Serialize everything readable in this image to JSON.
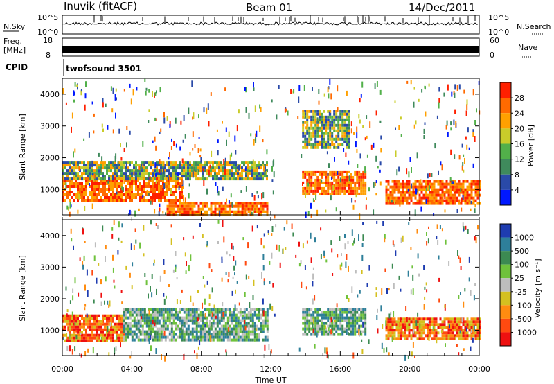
{
  "header": {
    "station": "Inuvik (fitACF)",
    "beam": "Beam 01",
    "date": "14/Dec/2011"
  },
  "strip_nsky": {
    "left_label": "N.Sky",
    "right_label": "N.Search",
    "left_ticks": [
      "10^5",
      "10^0"
    ],
    "right_ticks": [
      "10^5",
      "10^0"
    ]
  },
  "strip_freq": {
    "left_label_1": "Freq.",
    "left_label_2": "[MHz]",
    "right_label": "Nave",
    "left_ticks": [
      "18",
      "8"
    ],
    "right_ticks": [
      "60",
      "0"
    ]
  },
  "cpid": {
    "label": "CPID",
    "value": "twofsound 3501"
  },
  "chart_data": [
    {
      "type": "heatmap",
      "name": "power",
      "ylabel": "Slant Range [km]",
      "ylim": [
        200,
        4500
      ],
      "xlim_hours": [
        0,
        24
      ],
      "y_ticks": [
        1000,
        2000,
        3000,
        4000
      ],
      "colorbar": {
        "label": "Power [dB]",
        "range": [
          0,
          32
        ],
        "ticks": [
          "28",
          "24",
          "20",
          "16",
          "12",
          "8",
          "4"
        ]
      },
      "bands": [
        {
          "t0": 0.0,
          "t1": 6.9,
          "r0": 700,
          "r1": 1400,
          "level": "high"
        },
        {
          "t0": 0.0,
          "t1": 11.8,
          "r0": 1300,
          "r1": 1900,
          "level": "mid"
        },
        {
          "t0": 6.0,
          "t1": 11.8,
          "r0": 250,
          "r1": 600,
          "level": "high"
        },
        {
          "t0": 13.8,
          "t1": 17.5,
          "r0": 900,
          "r1": 1600,
          "level": "high"
        },
        {
          "t0": 13.8,
          "t1": 16.5,
          "r0": 2300,
          "r1": 3500,
          "level": "mid"
        },
        {
          "t0": 18.6,
          "t1": 24.0,
          "r0": 600,
          "r1": 1300,
          "level": "high"
        }
      ]
    },
    {
      "type": "heatmap",
      "name": "velocity",
      "ylabel": "Slant Range [km]",
      "ylim": [
        200,
        4500
      ],
      "xlim_hours": [
        0,
        24
      ],
      "y_ticks": [
        1000,
        2000,
        3000,
        4000
      ],
      "colorbar": {
        "label": "Velocity [m s⁻¹]",
        "range": [
          -1200,
          1200
        ],
        "ticks": [
          "1000",
          "500",
          "100",
          "25",
          "-25",
          "-100",
          "-500",
          "-1000"
        ]
      },
      "bands": [
        {
          "t0": 0.0,
          "t1": 3.5,
          "r0": 700,
          "r1": 1500,
          "level": "neg"
        },
        {
          "t0": 3.5,
          "t1": 11.8,
          "r0": 700,
          "r1": 1700,
          "level": "pos"
        },
        {
          "t0": 13.8,
          "t1": 17.5,
          "r0": 900,
          "r1": 1700,
          "level": "pos"
        },
        {
          "t0": 18.6,
          "t1": 24.0,
          "r0": 700,
          "r1": 1400,
          "level": "neg"
        }
      ]
    }
  ],
  "x_axis": {
    "ticks": [
      "00:00",
      "04:00",
      "08:00",
      "12:00",
      "16:00",
      "20:00",
      "00:00"
    ],
    "label": "Time UT"
  },
  "colors": {
    "power_scale": [
      "#0018ff",
      "#2a4aa8",
      "#3f8a5c",
      "#52b04a",
      "#c9cc2a",
      "#ffa000",
      "#ff6a00",
      "#ff2000"
    ],
    "velocity_scale": [
      "#1e3cb0",
      "#2e7f9a",
      "#3c8a52",
      "#6fc23c",
      "#bdbdbd",
      "#d4c020",
      "#ff8c10",
      "#ff4a10",
      "#ee1010"
    ]
  }
}
